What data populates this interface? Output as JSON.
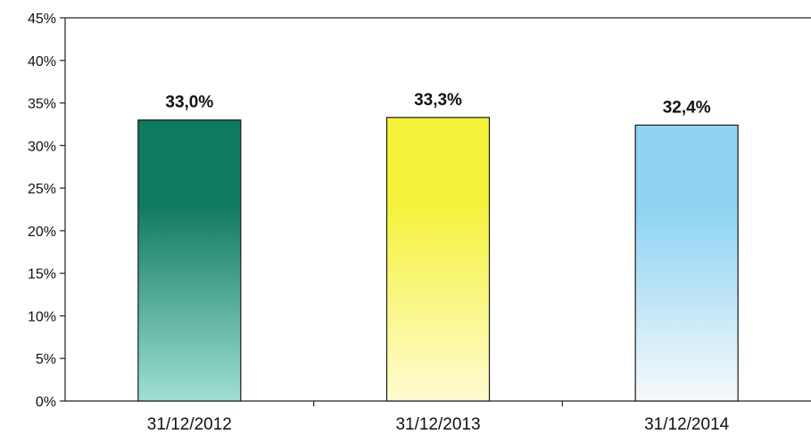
{
  "chart_data": {
    "type": "bar",
    "categories": [
      "31/12/2012",
      "31/12/2013",
      "31/12/2014"
    ],
    "values": [
      33.0,
      33.3,
      32.4
    ],
    "data_labels": [
      "33,0%",
      "33,3%",
      "32,4%"
    ],
    "ylim": [
      0,
      45
    ],
    "yticks": [
      0,
      5,
      10,
      15,
      20,
      25,
      30,
      35,
      40,
      45
    ],
    "ytick_labels": [
      "0%",
      "5%",
      "10%",
      "15%",
      "20%",
      "25%",
      "30%",
      "35%",
      "40%",
      "45%"
    ],
    "grid": false,
    "legend": "none",
    "bar_colors": [
      {
        "top": "#0f7a5e",
        "bottom": "#9fe0d3"
      },
      {
        "top": "#f4f23a",
        "bottom": "#fffbd2"
      },
      {
        "top": "#8ed3f2",
        "bottom": "#f6f9fb"
      }
    ]
  }
}
